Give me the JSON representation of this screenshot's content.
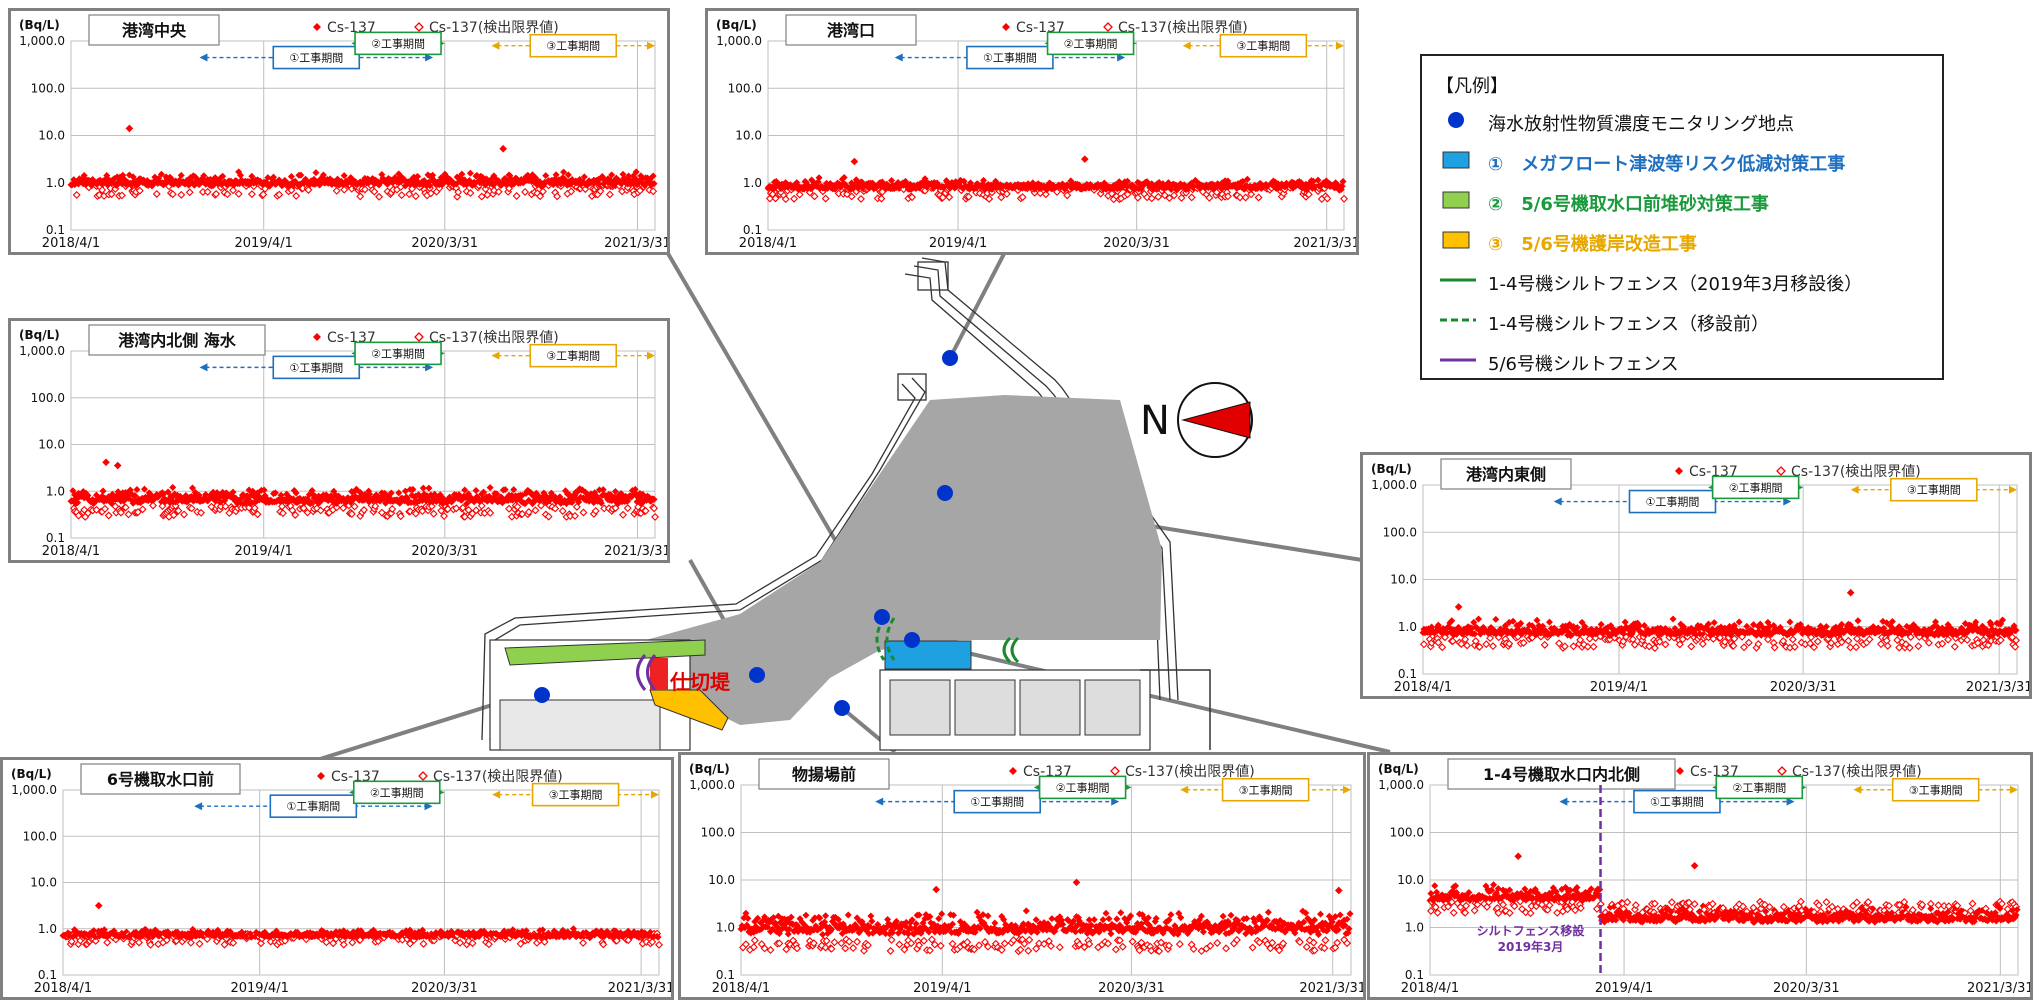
{
  "colors": {
    "detected": "#ff0000",
    "frame_border": "#808080",
    "period1": "#1f6fbf",
    "period2": "#1a9a3c",
    "period3": "#e6a800",
    "silt_purple": "#7030a0",
    "monitoring_point": "#0033cc",
    "site_gray": "#a6a6a6"
  },
  "map": {
    "north_label": "N",
    "partition_label": "仕切堤"
  },
  "legend": {
    "title": "【凡例】",
    "items": [
      {
        "label": "海水放射性物質濃度モニタリング地点",
        "symbol": "blue-dot",
        "color": "#0033cc",
        "text_color": "#111111"
      },
      {
        "label": "①　メガフロート津波等リスク低減対策工事",
        "symbol": "blue-rect",
        "color": "#1fa0e0",
        "text_color": "#1f6fbf"
      },
      {
        "label": "②　5/6号機取水口前堆砂対策工事",
        "symbol": "green-rect",
        "color": "#8fd14f",
        "text_color": "#1a9a3c"
      },
      {
        "label": "③　5/6号機護岸改造工事",
        "symbol": "orange-rect",
        "color": "#ffc000",
        "text_color": "#e6a800"
      },
      {
        "label": "1-4号機シルトフェンス（2019年3月移設後）",
        "symbol": "green-line",
        "color": "#1a8a2c",
        "text_color": "#111111"
      },
      {
        "label": "1-4号機シルトフェンス（移設前）",
        "symbol": "green-dashed",
        "color": "#1a8a2c",
        "text_color": "#111111"
      },
      {
        "label": "5/6号機シルトフェンス",
        "symbol": "purple-line",
        "color": "#7030a0",
        "text_color": "#111111"
      }
    ]
  },
  "chart_data": [
    {
      "type": "scatter",
      "title": "港湾中央",
      "y_unit": "(Bq/L)",
      "y_scale": "log",
      "ylim": [
        0.1,
        1000
      ],
      "y_ticks": [
        "0.1",
        "1.0",
        "10.0",
        "100.0",
        "1,000.0"
      ],
      "x_ticks": [
        "2018/4/1",
        "2019/4/1",
        "2020/3/31",
        "2021/3/31"
      ],
      "series": [
        {
          "name": "Cs-137",
          "marker": "filled-diamond"
        },
        {
          "name": "Cs-137(検出限界値)",
          "marker": "open-diamond"
        }
      ],
      "baseline_log_range": [
        -0.25,
        0.22
      ],
      "outliers": [
        [
          0.1,
          1.15
        ],
        [
          0.74,
          0.72
        ]
      ],
      "periods": [
        {
          "label": "①工事期間",
          "start": 0.22,
          "end": 0.62
        },
        {
          "label": "②工事期間",
          "start": 0.48,
          "end": 0.64
        },
        {
          "label": "③工事期間",
          "start": 0.72,
          "end": 1.0
        }
      ]
    },
    {
      "type": "scatter",
      "title": "港湾口",
      "y_unit": "(Bq/L)",
      "y_scale": "log",
      "ylim": [
        0.1,
        1000
      ],
      "y_ticks": [
        "0.1",
        "1.0",
        "10.0",
        "100.0",
        "1,000.0"
      ],
      "x_ticks": [
        "2018/4/1",
        "2019/4/1",
        "2020/3/31",
        "2021/3/31"
      ],
      "series": [
        {
          "name": "Cs-137",
          "marker": "filled-diamond"
        },
        {
          "name": "Cs-137(検出限界値)",
          "marker": "open-diamond"
        }
      ],
      "baseline_log_range": [
        -0.3,
        0.1
      ],
      "outliers": [
        [
          0.15,
          0.45
        ],
        [
          0.55,
          0.5
        ]
      ],
      "periods": [
        {
          "label": "①工事期間",
          "start": 0.22,
          "end": 0.62
        },
        {
          "label": "②工事期間",
          "start": 0.48,
          "end": 0.64
        },
        {
          "label": "③工事期間",
          "start": 0.72,
          "end": 1.0
        }
      ]
    },
    {
      "type": "scatter",
      "title": "港湾内北側 海水",
      "y_unit": "(Bq/L)",
      "y_scale": "log",
      "ylim": [
        0.1,
        1000
      ],
      "y_ticks": [
        "0.1",
        "1.0",
        "10.0",
        "100.0",
        "1,000.0"
      ],
      "x_ticks": [
        "2018/4/1",
        "2019/4/1",
        "2020/3/31",
        "2021/3/31"
      ],
      "series": [
        {
          "name": "Cs-137",
          "marker": "filled-diamond"
        },
        {
          "name": "Cs-137(検出限界値)",
          "marker": "open-diamond"
        }
      ],
      "baseline_log_range": [
        -0.5,
        0.1
      ],
      "outliers": [
        [
          0.06,
          0.62
        ],
        [
          0.08,
          0.55
        ]
      ],
      "periods": [
        {
          "label": "①工事期間",
          "start": 0.22,
          "end": 0.62
        },
        {
          "label": "②工事期間",
          "start": 0.48,
          "end": 0.64
        },
        {
          "label": "③工事期間",
          "start": 0.72,
          "end": 1.0
        }
      ]
    },
    {
      "type": "scatter",
      "title": "港湾内東側",
      "y_unit": "(Bq/L)",
      "y_scale": "log",
      "ylim": [
        0.1,
        1000
      ],
      "y_ticks": [
        "0.1",
        "1.0",
        "10.0",
        "100.0",
        "1,000.0"
      ],
      "x_ticks": [
        "2018/4/1",
        "2019/4/1",
        "2020/3/31",
        "2021/3/31"
      ],
      "series": [
        {
          "name": "Cs-137",
          "marker": "filled-diamond"
        },
        {
          "name": "Cs-137(検出限界値)",
          "marker": "open-diamond"
        }
      ],
      "baseline_log_range": [
        -0.4,
        0.15
      ],
      "outliers": [
        [
          0.06,
          0.42
        ],
        [
          0.72,
          0.72
        ]
      ],
      "periods": [
        {
          "label": "①工事期間",
          "start": 0.22,
          "end": 0.62
        },
        {
          "label": "②工事期間",
          "start": 0.48,
          "end": 0.64
        },
        {
          "label": "③工事期間",
          "start": 0.72,
          "end": 1.0
        }
      ]
    },
    {
      "type": "scatter",
      "title": "6号機取水口前",
      "y_unit": "(Bq/L)",
      "y_scale": "log",
      "ylim": [
        0.1,
        1000
      ],
      "y_ticks": [
        "0.1",
        "1.0",
        "10.0",
        "100.0",
        "1,000.0"
      ],
      "x_ticks": [
        "2018/4/1",
        "2019/4/1",
        "2020/3/31",
        "2021/3/31"
      ],
      "series": [
        {
          "name": "Cs-137",
          "marker": "filled-diamond"
        },
        {
          "name": "Cs-137(検出限界値)",
          "marker": "open-diamond"
        }
      ],
      "baseline_log_range": [
        -0.3,
        0.0
      ],
      "outliers": [
        [
          0.06,
          0.5
        ]
      ],
      "periods": [
        {
          "label": "①工事期間",
          "start": 0.22,
          "end": 0.62
        },
        {
          "label": "②工事期間",
          "start": 0.48,
          "end": 0.64
        },
        {
          "label": "③工事期間",
          "start": 0.72,
          "end": 1.0
        }
      ]
    },
    {
      "type": "scatter",
      "title": "物揚場前",
      "y_unit": "(Bq/L)",
      "y_scale": "log",
      "ylim": [
        0.1,
        1000
      ],
      "y_ticks": [
        "0.1",
        "1.0",
        "10.0",
        "100.0",
        "1,000.0"
      ],
      "x_ticks": [
        "2018/4/1",
        "2019/4/1",
        "2020/3/31",
        "2021/3/31"
      ],
      "series": [
        {
          "name": "Cs-137",
          "marker": "filled-diamond"
        },
        {
          "name": "Cs-137(検出限界値)",
          "marker": "open-diamond"
        }
      ],
      "baseline_log_range": [
        -0.45,
        0.35
      ],
      "outliers": [
        [
          0.32,
          0.8
        ],
        [
          0.55,
          0.95
        ],
        [
          0.98,
          0.78
        ]
      ],
      "periods": [
        {
          "label": "①工事期間",
          "start": 0.22,
          "end": 0.62
        },
        {
          "label": "②工事期間",
          "start": 0.48,
          "end": 0.64
        },
        {
          "label": "③工事期間",
          "start": 0.72,
          "end": 1.0
        }
      ]
    },
    {
      "type": "scatter",
      "title": "1-4号機取水口内北側",
      "y_unit": "(Bq/L)",
      "y_scale": "log",
      "ylim": [
        0.1,
        1000
      ],
      "y_ticks": [
        "0.1",
        "1.0",
        "10.0",
        "100.0",
        "1,000.0"
      ],
      "x_ticks": [
        "2018/4/1",
        "2019/4/1",
        "2020/3/31",
        "2021/3/31"
      ],
      "series": [
        {
          "name": "Cs-137",
          "marker": "filled-diamond"
        },
        {
          "name": "Cs-137(検出限界値)",
          "marker": "open-diamond"
        }
      ],
      "baseline_log_range": [
        0.35,
        0.9
      ],
      "outliers": [
        [
          0.15,
          1.5
        ],
        [
          0.45,
          1.3
        ]
      ],
      "silt_fence_move": {
        "label_line1": "シルトフェンス移設",
        "label_line2": "2019年3月",
        "position": 0.29
      },
      "periods": [
        {
          "label": "①工事期間",
          "start": 0.22,
          "end": 0.62
        },
        {
          "label": "②工事期間",
          "start": 0.48,
          "end": 0.64
        },
        {
          "label": "③工事期間",
          "start": 0.72,
          "end": 1.0
        }
      ]
    }
  ]
}
